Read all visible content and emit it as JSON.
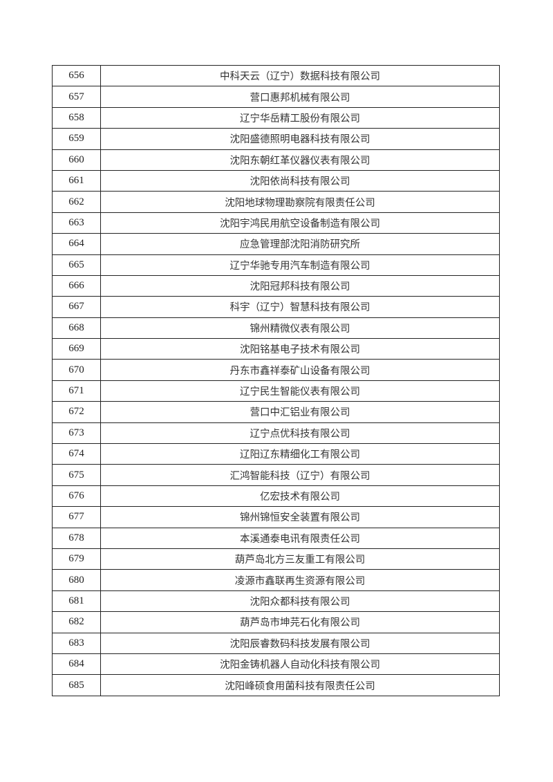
{
  "table": {
    "rows": [
      {
        "no": "656",
        "name": "中科天云（辽宁）数据科技有限公司"
      },
      {
        "no": "657",
        "name": "营口惠邦机械有限公司"
      },
      {
        "no": "658",
        "name": "辽宁华岳精工股份有限公司"
      },
      {
        "no": "659",
        "name": "沈阳盛德照明电器科技有限公司"
      },
      {
        "no": "660",
        "name": "沈阳东朝红革仪器仪表有限公司"
      },
      {
        "no": "661",
        "name": "沈阳依尚科技有限公司"
      },
      {
        "no": "662",
        "name": "沈阳地球物理勘察院有限责任公司"
      },
      {
        "no": "663",
        "name": "沈阳宇鸿民用航空设备制造有限公司"
      },
      {
        "no": "664",
        "name": "应急管理部沈阳消防研究所"
      },
      {
        "no": "665",
        "name": "辽宁华驰专用汽车制造有限公司"
      },
      {
        "no": "666",
        "name": "沈阳冠邦科技有限公司"
      },
      {
        "no": "667",
        "name": "科宇（辽宁）智慧科技有限公司"
      },
      {
        "no": "668",
        "name": "锦州精微仪表有限公司"
      },
      {
        "no": "669",
        "name": "沈阳铭基电子技术有限公司"
      },
      {
        "no": "670",
        "name": "丹东市鑫祥泰矿山设备有限公司"
      },
      {
        "no": "671",
        "name": "辽宁民生智能仪表有限公司"
      },
      {
        "no": "672",
        "name": "营口中汇铝业有限公司"
      },
      {
        "no": "673",
        "name": "辽宁点优科技有限公司"
      },
      {
        "no": "674",
        "name": "辽阳辽东精细化工有限公司"
      },
      {
        "no": "675",
        "name": "汇鸿智能科技（辽宁）有限公司"
      },
      {
        "no": "676",
        "name": "亿宏技术有限公司"
      },
      {
        "no": "677",
        "name": "锦州锦恒安全装置有限公司"
      },
      {
        "no": "678",
        "name": "本溪通泰电讯有限责任公司"
      },
      {
        "no": "679",
        "name": "葫芦岛北方三友重工有限公司"
      },
      {
        "no": "680",
        "name": "凌源市鑫联再生资源有限公司"
      },
      {
        "no": "681",
        "name": "沈阳众都科技有限公司"
      },
      {
        "no": "682",
        "name": "葫芦岛市坤芫石化有限公司"
      },
      {
        "no": "683",
        "name": "沈阳辰睿数码科技发展有限公司"
      },
      {
        "no": "684",
        "name": "沈阳金铸机器人自动化科技有限公司"
      },
      {
        "no": "685",
        "name": "沈阳峰硕食用菌科技有限责任公司"
      }
    ]
  }
}
